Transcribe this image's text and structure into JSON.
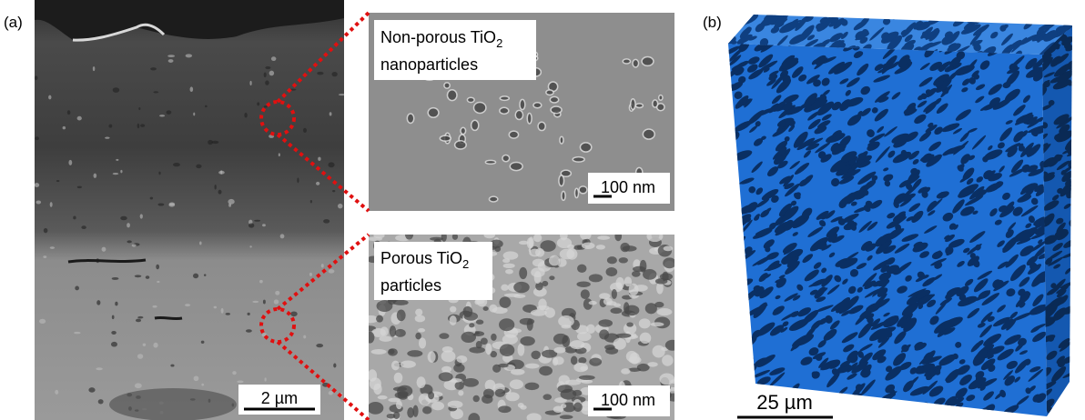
{
  "panel_a": {
    "label": "(a)",
    "scale_bar": "2 µm",
    "insets": [
      {
        "title": {
          "text": "Non-porous TiO",
          "subscript": "2",
          "line2": "nanoparticles"
        },
        "scale_bar": "100 nm"
      },
      {
        "title": {
          "text": "Porous TiO",
          "subscript": "2",
          "line2": "particles"
        },
        "scale_bar": "100 nm"
      }
    ]
  },
  "panel_b": {
    "label": "(b)",
    "scale_bar": "25 µm"
  }
}
